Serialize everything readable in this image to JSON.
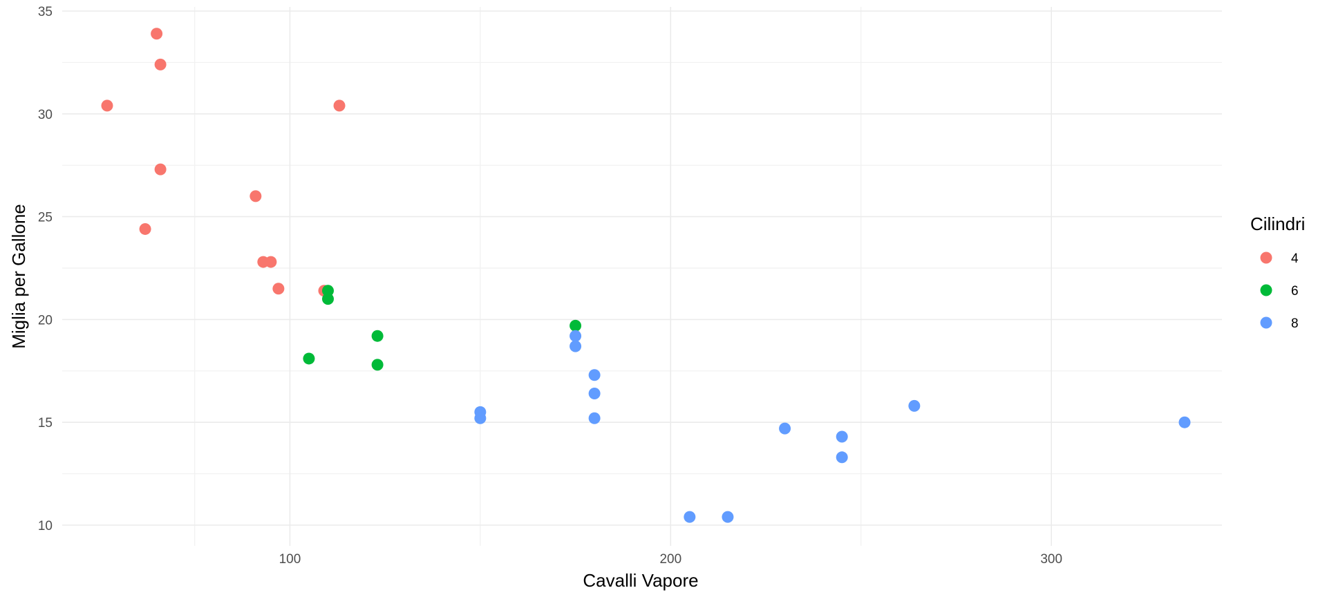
{
  "chart_data": {
    "type": "scatter",
    "title": "",
    "xlabel": "Cavalli Vapore",
    "ylabel": "Miglia per Gallone",
    "xlim": [
      40,
      352
    ],
    "ylim": [
      9.5,
      35
    ],
    "x_ticks": [
      100,
      200,
      300
    ],
    "x_tick_labels": [
      "100",
      "200",
      "300"
    ],
    "y_ticks": [
      10,
      15,
      20,
      25,
      30,
      35
    ],
    "y_tick_labels": [
      "10",
      "15",
      "20",
      "25",
      "30",
      "35"
    ],
    "grid": true,
    "legend": {
      "title": "Cilindri",
      "position": "right"
    },
    "series": [
      {
        "name": "4",
        "color": "#F8766D",
        "points": [
          {
            "x": 52,
            "y": 30.4
          },
          {
            "x": 65,
            "y": 33.9
          },
          {
            "x": 66,
            "y": 32.4
          },
          {
            "x": 66,
            "y": 27.3
          },
          {
            "x": 62,
            "y": 24.4
          },
          {
            "x": 91,
            "y": 26.0
          },
          {
            "x": 93,
            "y": 22.8
          },
          {
            "x": 95,
            "y": 22.8
          },
          {
            "x": 97,
            "y": 21.5
          },
          {
            "x": 109,
            "y": 21.4
          },
          {
            "x": 113,
            "y": 30.4
          }
        ]
      },
      {
        "name": "6",
        "color": "#00BA38",
        "points": [
          {
            "x": 110,
            "y": 21.4
          },
          {
            "x": 110,
            "y": 21.0
          },
          {
            "x": 105,
            "y": 18.1
          },
          {
            "x": 123,
            "y": 19.2
          },
          {
            "x": 123,
            "y": 17.8
          },
          {
            "x": 175,
            "y": 19.7
          }
        ]
      },
      {
        "name": "8",
        "color": "#619CFF",
        "points": [
          {
            "x": 175,
            "y": 19.2
          },
          {
            "x": 175,
            "y": 18.7
          },
          {
            "x": 150,
            "y": 15.5
          },
          {
            "x": 150,
            "y": 15.2
          },
          {
            "x": 180,
            "y": 17.3
          },
          {
            "x": 180,
            "y": 16.4
          },
          {
            "x": 180,
            "y": 15.2
          },
          {
            "x": 205,
            "y": 10.4
          },
          {
            "x": 215,
            "y": 10.4
          },
          {
            "x": 230,
            "y": 14.7
          },
          {
            "x": 245,
            "y": 14.3
          },
          {
            "x": 245,
            "y": 13.3
          },
          {
            "x": 264,
            "y": 15.8
          },
          {
            "x": 335,
            "y": 15.0
          }
        ]
      }
    ]
  }
}
